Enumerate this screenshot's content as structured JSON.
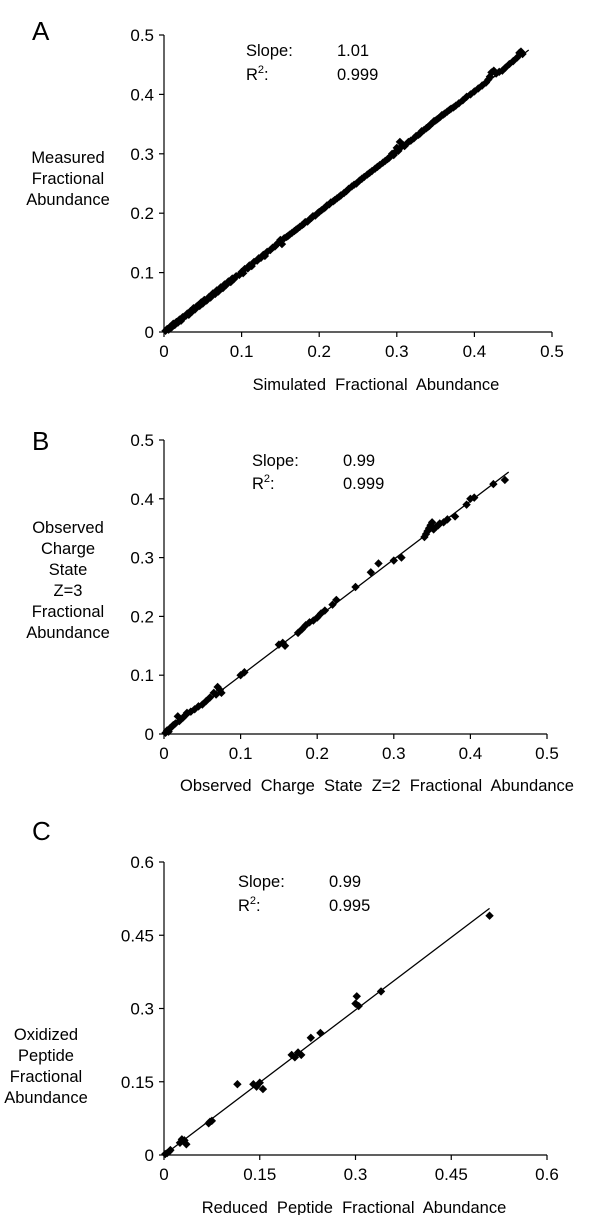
{
  "chart_data": [
    {
      "panel": "A",
      "type": "scatter",
      "xlabel": "Simulated  Fractional  Abundance",
      "ylabel": [
        "Measured",
        "Fractional",
        "Abundance"
      ],
      "xlim": [
        0,
        0.5
      ],
      "ylim": [
        0,
        0.5
      ],
      "xticks": [
        "0",
        "0.1",
        "0.2",
        "0.3",
        "0.4",
        "0.5"
      ],
      "yticks": [
        "0",
        "0.1",
        "0.2",
        "0.3",
        "0.4",
        "0.5"
      ],
      "stats": {
        "slope_label": "Slope:",
        "slope_value": "1.01",
        "r2_label": "R",
        "r2_sup": "2",
        "r2_colon": ":",
        "r2_value": "0.999"
      },
      "fit_line": {
        "x0": 0,
        "y0": 0,
        "x1": 0.47,
        "y1": 0.4747
      },
      "points": [
        [
          0.002,
          0.002
        ],
        [
          0.004,
          0.005
        ],
        [
          0.006,
          0.004
        ],
        [
          0.008,
          0.009
        ],
        [
          0.01,
          0.008
        ],
        [
          0.012,
          0.014
        ],
        [
          0.014,
          0.012
        ],
        [
          0.016,
          0.017
        ],
        [
          0.018,
          0.016
        ],
        [
          0.02,
          0.021
        ],
        [
          0.022,
          0.019
        ],
        [
          0.024,
          0.025
        ],
        [
          0.026,
          0.026
        ],
        [
          0.028,
          0.027
        ],
        [
          0.03,
          0.031
        ],
        [
          0.032,
          0.029
        ],
        [
          0.034,
          0.035
        ],
        [
          0.036,
          0.034
        ],
        [
          0.038,
          0.04
        ],
        [
          0.04,
          0.038
        ],
        [
          0.042,
          0.043
        ],
        [
          0.044,
          0.045
        ],
        [
          0.046,
          0.044
        ],
        [
          0.048,
          0.05
        ],
        [
          0.05,
          0.048
        ],
        [
          0.052,
          0.054
        ],
        [
          0.055,
          0.053
        ],
        [
          0.058,
          0.059
        ],
        [
          0.06,
          0.058
        ],
        [
          0.063,
          0.065
        ],
        [
          0.066,
          0.064
        ],
        [
          0.068,
          0.07
        ],
        [
          0.07,
          0.068
        ],
        [
          0.073,
          0.075
        ],
        [
          0.076,
          0.074
        ],
        [
          0.078,
          0.08
        ],
        [
          0.08,
          0.079
        ],
        [
          0.083,
          0.085
        ],
        [
          0.086,
          0.084
        ],
        [
          0.088,
          0.09
        ],
        [
          0.09,
          0.089
        ],
        [
          0.093,
          0.094
        ],
        [
          0.097,
          0.096
        ],
        [
          0.1,
          0.101
        ],
        [
          0.102,
          0.099
        ],
        [
          0.104,
          0.106
        ],
        [
          0.108,
          0.107
        ],
        [
          0.11,
          0.112
        ],
        [
          0.113,
          0.111
        ],
        [
          0.116,
          0.118
        ],
        [
          0.12,
          0.12
        ],
        [
          0.122,
          0.124
        ],
        [
          0.125,
          0.125
        ],
        [
          0.128,
          0.13
        ],
        [
          0.13,
          0.128
        ],
        [
          0.133,
          0.135
        ],
        [
          0.137,
          0.138
        ],
        [
          0.14,
          0.142
        ],
        [
          0.143,
          0.144
        ],
        [
          0.145,
          0.147
        ],
        [
          0.147,
          0.15
        ],
        [
          0.15,
          0.155
        ],
        [
          0.152,
          0.148
        ],
        [
          0.155,
          0.158
        ],
        [
          0.158,
          0.16
        ],
        [
          0.16,
          0.162
        ],
        [
          0.162,
          0.164
        ],
        [
          0.165,
          0.167
        ],
        [
          0.168,
          0.17
        ],
        [
          0.17,
          0.172
        ],
        [
          0.172,
          0.174
        ],
        [
          0.175,
          0.177
        ],
        [
          0.178,
          0.18
        ],
        [
          0.18,
          0.182
        ],
        [
          0.182,
          0.185
        ],
        [
          0.185,
          0.186
        ],
        [
          0.188,
          0.19
        ],
        [
          0.19,
          0.192
        ],
        [
          0.192,
          0.195
        ],
        [
          0.195,
          0.196
        ],
        [
          0.198,
          0.2
        ],
        [
          0.2,
          0.202
        ],
        [
          0.203,
          0.205
        ],
        [
          0.206,
          0.208
        ],
        [
          0.208,
          0.21
        ],
        [
          0.21,
          0.213
        ],
        [
          0.213,
          0.215
        ],
        [
          0.215,
          0.218
        ],
        [
          0.218,
          0.22
        ],
        [
          0.22,
          0.222
        ],
        [
          0.223,
          0.225
        ],
        [
          0.226,
          0.228
        ],
        [
          0.228,
          0.23
        ],
        [
          0.232,
          0.234
        ],
        [
          0.235,
          0.237
        ],
        [
          0.238,
          0.241
        ],
        [
          0.242,
          0.245
        ],
        [
          0.245,
          0.248
        ],
        [
          0.248,
          0.25
        ],
        [
          0.252,
          0.255
        ],
        [
          0.255,
          0.258
        ],
        [
          0.258,
          0.261
        ],
        [
          0.262,
          0.265
        ],
        [
          0.265,
          0.268
        ],
        [
          0.268,
          0.271
        ],
        [
          0.272,
          0.275
        ],
        [
          0.275,
          0.278
        ],
        [
          0.278,
          0.281
        ],
        [
          0.282,
          0.285
        ],
        [
          0.285,
          0.288
        ],
        [
          0.288,
          0.291
        ],
        [
          0.29,
          0.293
        ],
        [
          0.292,
          0.296
        ],
        [
          0.294,
          0.3
        ],
        [
          0.296,
          0.298
        ],
        [
          0.298,
          0.303
        ],
        [
          0.3,
          0.31
        ],
        [
          0.302,
          0.305
        ],
        [
          0.304,
          0.32
        ],
        [
          0.306,
          0.312
        ],
        [
          0.308,
          0.315
        ],
        [
          0.31,
          0.313
        ],
        [
          0.315,
          0.32
        ],
        [
          0.318,
          0.322
        ],
        [
          0.322,
          0.326
        ],
        [
          0.325,
          0.33
        ],
        [
          0.328,
          0.332
        ],
        [
          0.33,
          0.334
        ],
        [
          0.332,
          0.338
        ],
        [
          0.335,
          0.34
        ],
        [
          0.338,
          0.343
        ],
        [
          0.34,
          0.345
        ],
        [
          0.342,
          0.347
        ],
        [
          0.344,
          0.35
        ],
        [
          0.346,
          0.352
        ],
        [
          0.348,
          0.355
        ],
        [
          0.35,
          0.356
        ],
        [
          0.352,
          0.358
        ],
        [
          0.354,
          0.36
        ],
        [
          0.356,
          0.362
        ],
        [
          0.358,
          0.365
        ],
        [
          0.36,
          0.366
        ],
        [
          0.362,
          0.368
        ],
        [
          0.365,
          0.371
        ],
        [
          0.368,
          0.374
        ],
        [
          0.37,
          0.376
        ],
        [
          0.373,
          0.378
        ],
        [
          0.376,
          0.381
        ],
        [
          0.38,
          0.385
        ],
        [
          0.385,
          0.39
        ],
        [
          0.39,
          0.396
        ],
        [
          0.395,
          0.4
        ],
        [
          0.4,
          0.405
        ],
        [
          0.405,
          0.41
        ],
        [
          0.41,
          0.415
        ],
        [
          0.415,
          0.42
        ],
        [
          0.418,
          0.425
        ],
        [
          0.42,
          0.43
        ],
        [
          0.422,
          0.437
        ],
        [
          0.425,
          0.44
        ],
        [
          0.428,
          0.435
        ],
        [
          0.432,
          0.438
        ],
        [
          0.436,
          0.44
        ],
        [
          0.44,
          0.445
        ],
        [
          0.445,
          0.451
        ],
        [
          0.45,
          0.456
        ],
        [
          0.455,
          0.462
        ],
        [
          0.458,
          0.47
        ],
        [
          0.46,
          0.472
        ],
        [
          0.462,
          0.468
        ]
      ]
    },
    {
      "panel": "B",
      "type": "scatter",
      "xlabel": "Observed  Charge  State  Z=2  Fractional  Abundance",
      "ylabel": [
        "Observed",
        "Charge",
        "State",
        "Z=3",
        "Fractional",
        "Abundance"
      ],
      "xlim": [
        0,
        0.5
      ],
      "ylim": [
        0,
        0.5
      ],
      "xticks": [
        "0",
        "0.1",
        "0.2",
        "0.3",
        "0.4",
        "0.5"
      ],
      "yticks": [
        "0",
        "0.1",
        "0.2",
        "0.3",
        "0.4",
        "0.5"
      ],
      "stats": {
        "slope_label": "Slope:",
        "slope_value": "0.99",
        "r2_label": "R",
        "r2_sup": "2",
        "r2_colon": ":",
        "r2_value": "0.999"
      },
      "fit_line": {
        "x0": 0,
        "y0": 0,
        "x1": 0.45,
        "y1": 0.4455
      },
      "points": [
        [
          0.002,
          0.002
        ],
        [
          0.004,
          0.006
        ],
        [
          0.006,
          0.004
        ],
        [
          0.008,
          0.01
        ],
        [
          0.01,
          0.012
        ],
        [
          0.012,
          0.015
        ],
        [
          0.015,
          0.018
        ],
        [
          0.018,
          0.03
        ],
        [
          0.02,
          0.022
        ],
        [
          0.022,
          0.025
        ],
        [
          0.025,
          0.028
        ],
        [
          0.028,
          0.032
        ],
        [
          0.03,
          0.036
        ],
        [
          0.035,
          0.038
        ],
        [
          0.04,
          0.042
        ],
        [
          0.045,
          0.047
        ],
        [
          0.05,
          0.05
        ],
        [
          0.055,
          0.056
        ],
        [
          0.06,
          0.062
        ],
        [
          0.065,
          0.07
        ],
        [
          0.068,
          0.067
        ],
        [
          0.07,
          0.08
        ],
        [
          0.073,
          0.075
        ],
        [
          0.075,
          0.07
        ],
        [
          0.1,
          0.1
        ],
        [
          0.105,
          0.105
        ],
        [
          0.15,
          0.152
        ],
        [
          0.155,
          0.155
        ],
        [
          0.158,
          0.15
        ],
        [
          0.175,
          0.172
        ],
        [
          0.18,
          0.178
        ],
        [
          0.185,
          0.185
        ],
        [
          0.19,
          0.19
        ],
        [
          0.195,
          0.193
        ],
        [
          0.2,
          0.198
        ],
        [
          0.205,
          0.205
        ],
        [
          0.21,
          0.21
        ],
        [
          0.22,
          0.22
        ],
        [
          0.225,
          0.228
        ],
        [
          0.25,
          0.25
        ],
        [
          0.27,
          0.275
        ],
        [
          0.28,
          0.29
        ],
        [
          0.3,
          0.295
        ],
        [
          0.31,
          0.3
        ],
        [
          0.34,
          0.335
        ],
        [
          0.342,
          0.34
        ],
        [
          0.344,
          0.345
        ],
        [
          0.346,
          0.35
        ],
        [
          0.348,
          0.355
        ],
        [
          0.35,
          0.36
        ],
        [
          0.352,
          0.348
        ],
        [
          0.355,
          0.352
        ],
        [
          0.358,
          0.355
        ],
        [
          0.36,
          0.358
        ],
        [
          0.365,
          0.36
        ],
        [
          0.37,
          0.365
        ],
        [
          0.38,
          0.37
        ],
        [
          0.395,
          0.39
        ],
        [
          0.4,
          0.4
        ],
        [
          0.405,
          0.402
        ],
        [
          0.43,
          0.425
        ],
        [
          0.445,
          0.432
        ]
      ]
    },
    {
      "panel": "C",
      "type": "scatter",
      "xlabel": "Reduced  Peptide  Fractional  Abundance",
      "ylabel": [
        "Oxidized",
        "Peptide",
        "Fractional",
        "Abundance"
      ],
      "xlim": [
        0,
        0.6
      ],
      "ylim": [
        0,
        0.6
      ],
      "xticks": [
        "0",
        "0.15",
        "0.3",
        "0.45",
        "0.6"
      ],
      "yticks": [
        "0",
        "0.15",
        "0.3",
        "0.45",
        "0.6"
      ],
      "stats": {
        "slope_label": "Slope:",
        "slope_value": "0.99",
        "r2_label": "R",
        "r2_sup": "2",
        "r2_colon": ":",
        "r2_value": "0.995"
      },
      "fit_line": {
        "x0": 0,
        "y0": 0,
        "x1": 0.51,
        "y1": 0.505
      },
      "points": [
        [
          0.002,
          0.002
        ],
        [
          0.005,
          0.004
        ],
        [
          0.008,
          0.007
        ],
        [
          0.01,
          0.01
        ],
        [
          0.025,
          0.025
        ],
        [
          0.028,
          0.032
        ],
        [
          0.032,
          0.03
        ],
        [
          0.035,
          0.022
        ],
        [
          0.07,
          0.065
        ],
        [
          0.072,
          0.068
        ],
        [
          0.075,
          0.07
        ],
        [
          0.115,
          0.145
        ],
        [
          0.14,
          0.145
        ],
        [
          0.145,
          0.14
        ],
        [
          0.15,
          0.148
        ],
        [
          0.155,
          0.135
        ],
        [
          0.2,
          0.205
        ],
        [
          0.205,
          0.2
        ],
        [
          0.21,
          0.21
        ],
        [
          0.215,
          0.205
        ],
        [
          0.23,
          0.24
        ],
        [
          0.245,
          0.25
        ],
        [
          0.3,
          0.31
        ],
        [
          0.302,
          0.325
        ],
        [
          0.305,
          0.305
        ],
        [
          0.34,
          0.335
        ],
        [
          0.51,
          0.49
        ]
      ]
    }
  ]
}
